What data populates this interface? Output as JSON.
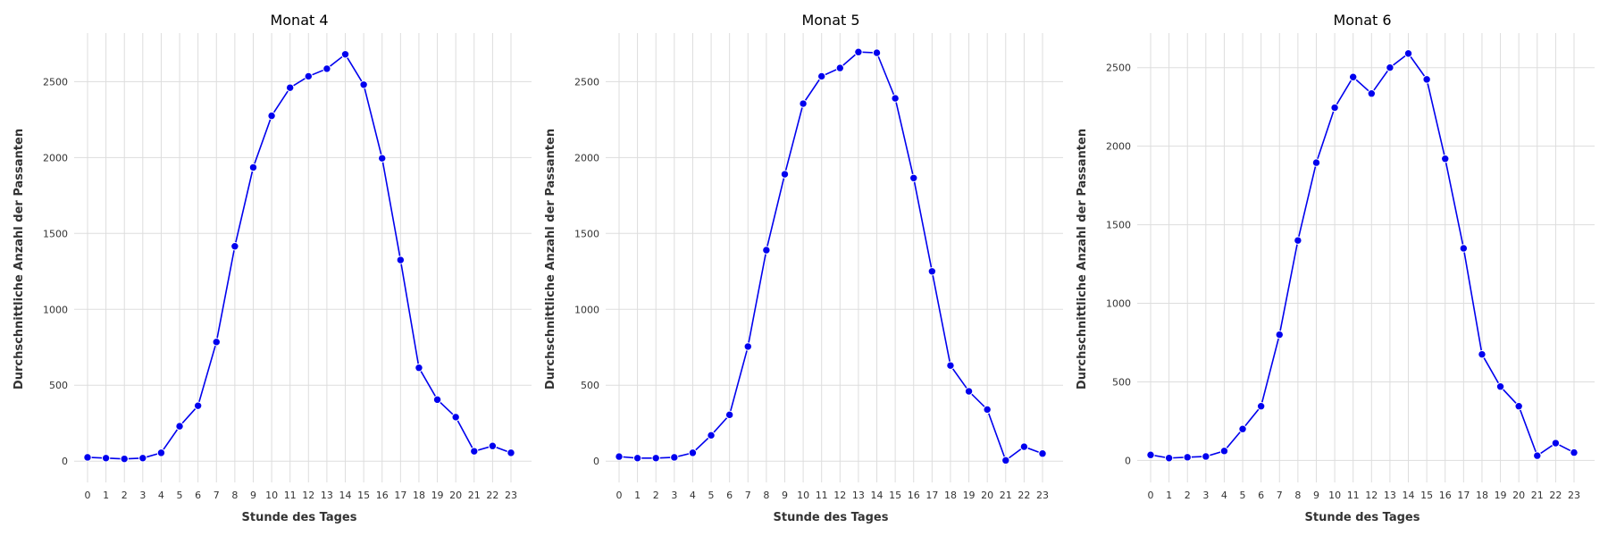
{
  "chart_data": [
    {
      "type": "line",
      "title": "Monat 4",
      "xlabel": "Stunde des Tages",
      "ylabel": "Durchschnittliche Anzahl der Passanten",
      "x": [
        0,
        1,
        2,
        3,
        4,
        5,
        6,
        7,
        8,
        9,
        10,
        11,
        12,
        13,
        14,
        15,
        16,
        17,
        18,
        19,
        20,
        21,
        22,
        23
      ],
      "values": [
        25,
        20,
        15,
        20,
        55,
        230,
        365,
        785,
        1415,
        1935,
        2275,
        2460,
        2535,
        2585,
        2680,
        2480,
        1995,
        1325,
        615,
        405,
        290,
        65,
        100,
        55
      ],
      "yticks": [
        0,
        500,
        1000,
        1500,
        2000,
        2500
      ],
      "ylim": [
        -140,
        2820
      ],
      "color": "#0000ee",
      "grid": true
    },
    {
      "type": "line",
      "title": "Monat 5",
      "xlabel": "Stunde des Tages",
      "ylabel": "Durchschnittliche Anzahl der Passanten",
      "x": [
        0,
        1,
        2,
        3,
        4,
        5,
        6,
        7,
        8,
        9,
        10,
        11,
        12,
        13,
        14,
        15,
        16,
        17,
        18,
        19,
        20,
        21,
        22,
        23
      ],
      "values": [
        30,
        20,
        20,
        25,
        55,
        170,
        305,
        755,
        1390,
        1890,
        2355,
        2535,
        2590,
        2695,
        2690,
        2390,
        1865,
        1250,
        630,
        460,
        340,
        5,
        95,
        50
      ],
      "yticks": [
        0,
        500,
        1000,
        1500,
        2000,
        2500
      ],
      "ylim": [
        -140,
        2820
      ],
      "color": "#0000ee",
      "grid": true
    },
    {
      "type": "line",
      "title": "Monat 6",
      "xlabel": "Stunde des Tages",
      "ylabel": "Durchschnittliche Anzahl der Passanten",
      "x": [
        0,
        1,
        2,
        3,
        4,
        5,
        6,
        7,
        8,
        9,
        10,
        11,
        12,
        13,
        14,
        15,
        16,
        17,
        18,
        19,
        20,
        21,
        22,
        23
      ],
      "values": [
        35,
        15,
        20,
        25,
        60,
        200,
        345,
        800,
        1400,
        1895,
        2245,
        2440,
        2335,
        2500,
        2590,
        2425,
        1920,
        1350,
        675,
        470,
        345,
        30,
        110,
        50
      ],
      "yticks": [
        0,
        500,
        1000,
        1500,
        2000,
        2500
      ],
      "ylim": [
        -140,
        2720
      ],
      "color": "#0000ee",
      "grid": true
    }
  ]
}
